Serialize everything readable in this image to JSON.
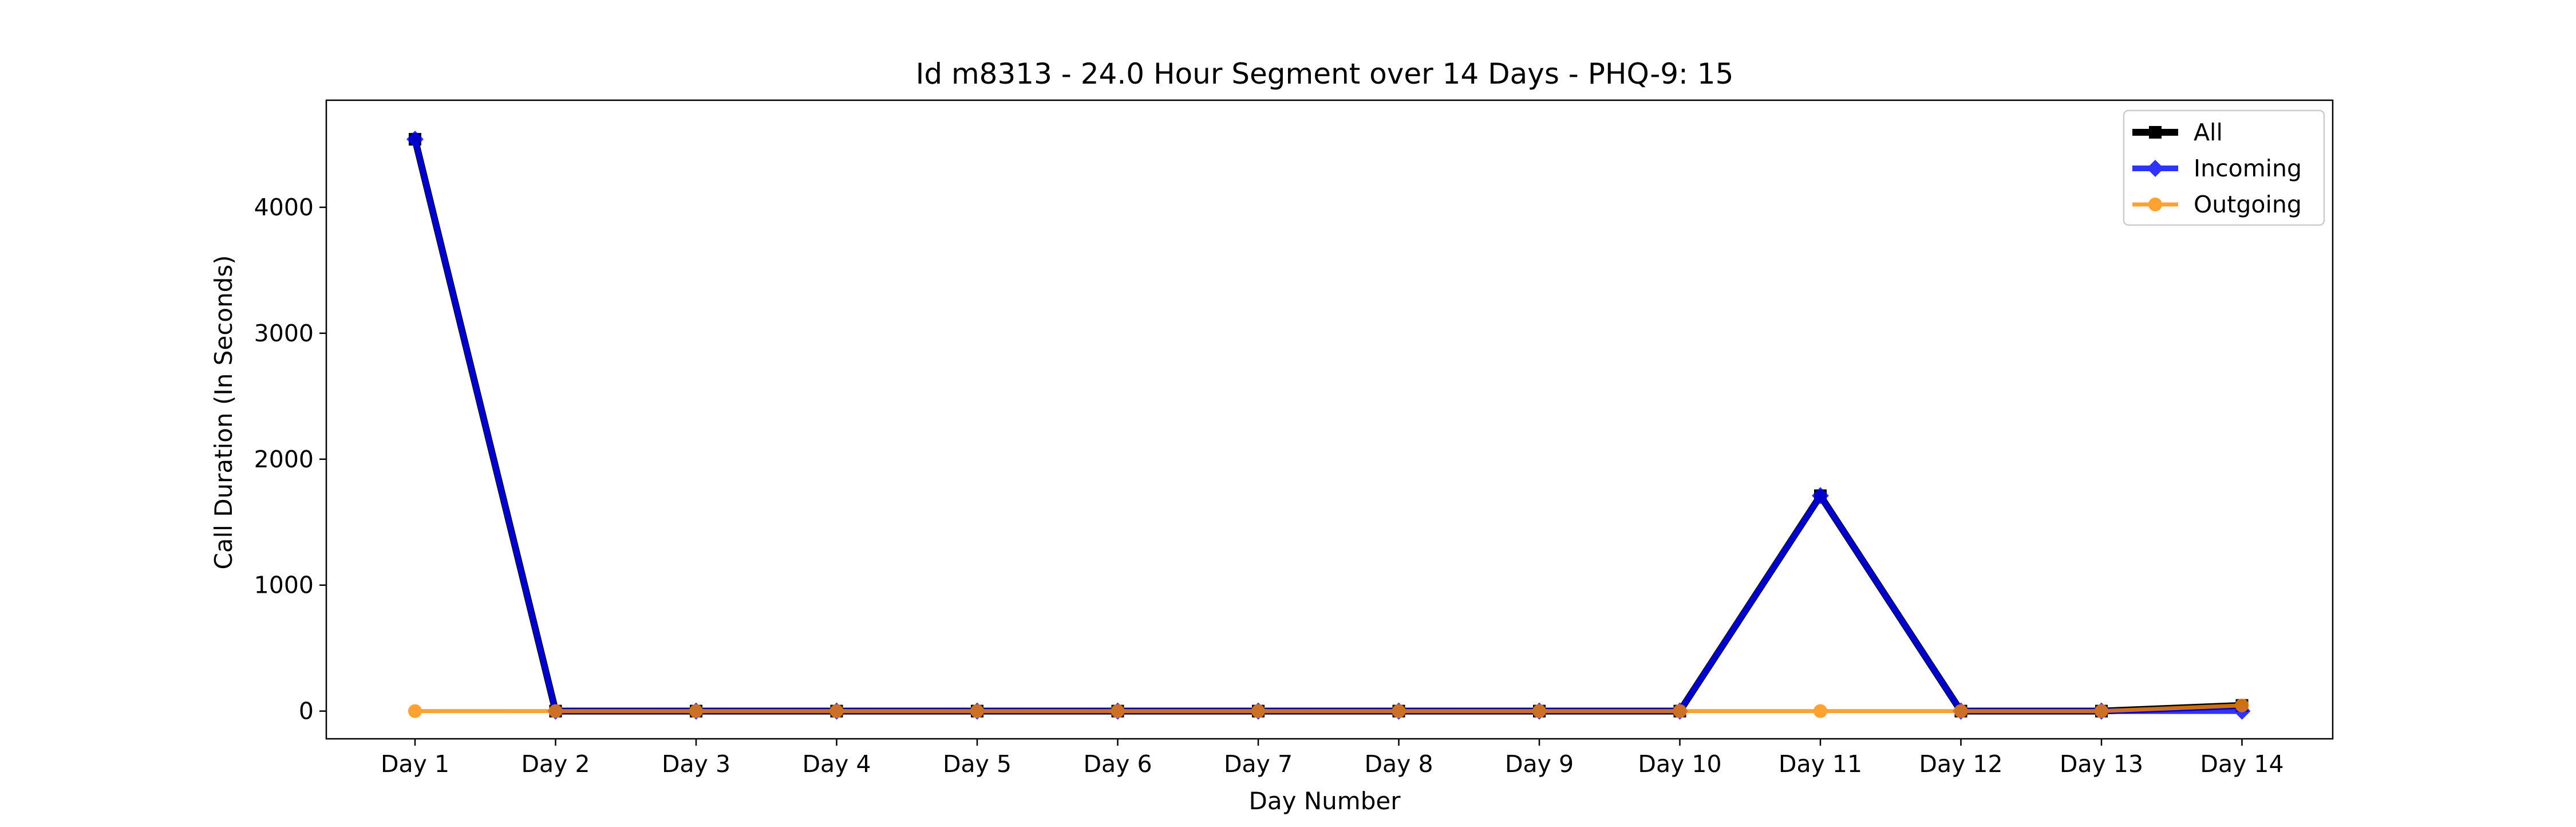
{
  "chart_data": {
    "type": "line",
    "title": "Id m8313 - 24.0 Hour Segment over 14 Days - PHQ-9: 15",
    "xlabel": "Day Number",
    "ylabel": "Call Duration (In Seconds)",
    "categories": [
      "Day 1",
      "Day 2",
      "Day 3",
      "Day 4",
      "Day 5",
      "Day 6",
      "Day 7",
      "Day 8",
      "Day 9",
      "Day 10",
      "Day 11",
      "Day 12",
      "Day 13",
      "Day 14"
    ],
    "ylim": [
      -220,
      4850
    ],
    "yticks": [
      0,
      1000,
      2000,
      3000,
      4000
    ],
    "legend_position": "top-right",
    "grid": false,
    "series": [
      {
        "name": "All",
        "color": "#000000",
        "marker": "square",
        "values": [
          4540,
          0,
          0,
          0,
          0,
          0,
          0,
          0,
          0,
          0,
          1710,
          0,
          0,
          45
        ]
      },
      {
        "name": "Incoming",
        "color": "#0000ff",
        "marker": "diamond",
        "values": [
          4540,
          0,
          0,
          0,
          0,
          0,
          0,
          0,
          0,
          0,
          1710,
          0,
          0,
          0
        ]
      },
      {
        "name": "Outgoing",
        "color": "#ff8c00",
        "marker": "circle",
        "values": [
          0,
          0,
          0,
          0,
          0,
          0,
          0,
          0,
          0,
          0,
          0,
          0,
          0,
          45
        ]
      }
    ]
  }
}
